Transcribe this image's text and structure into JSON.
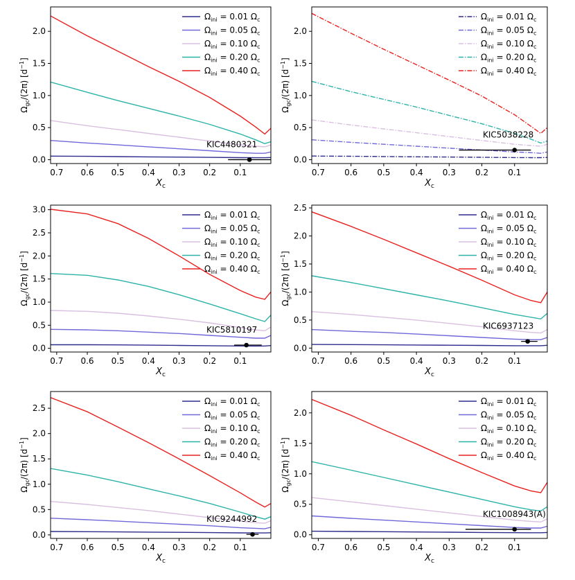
{
  "figure": {
    "xlabel": "X",
    "xlabel_sub": "c",
    "ylabel_main": "Ω",
    "ylabel_sub": "gc",
    "ylabel_rest": "/(2π) [d",
    "ylabel_exp": "−1",
    "ylabel_end": "]"
  },
  "legend_series": [
    {
      "prefix": "Ω",
      "sub": "ini",
      "value": " = 0.01 Ω",
      "csub": "c",
      "color": "#2d2b8c"
    },
    {
      "prefix": "Ω",
      "sub": "ini",
      "value": " = 0.05 Ω",
      "csub": "c",
      "color": "#7067d8"
    },
    {
      "prefix": "Ω",
      "sub": "ini",
      "value": " = 0.10 Ω",
      "csub": "c",
      "color": "#d9bfe0"
    },
    {
      "prefix": "Ω",
      "sub": "ini",
      "value": " = 0.20 Ω",
      "csub": "c",
      "color": "#2bb3a8"
    },
    {
      "prefix": "Ω",
      "sub": "ini",
      "value": " = 0.40 Ω",
      "csub": "c",
      "color": "#e8211e"
    }
  ],
  "chart_data": [
    {
      "type": "line",
      "star": "KIC4480321",
      "legend_style": "solid",
      "xlim": [
        0.72,
        0.0
      ],
      "ylim": [
        -0.06,
        2.38
      ],
      "xticks": [
        "0.7",
        "0.6",
        "0.5",
        "0.4",
        "0.3",
        "0.2",
        "0.1"
      ],
      "xtick_values": [
        0.7,
        0.6,
        0.5,
        0.4,
        0.3,
        0.2,
        0.1
      ],
      "yticks": [
        "0.0",
        "0.5",
        "1.0",
        "1.5",
        "2.0"
      ],
      "ytick_values": [
        0.0,
        0.5,
        1.0,
        1.5,
        2.0
      ],
      "observation": {
        "x": 0.07,
        "y": 0.0,
        "xerr": [
          0.07,
          0.07
        ]
      },
      "series": [
        {
          "color": "#2d2b8c",
          "x": [
            0.72,
            0.6,
            0.5,
            0.4,
            0.3,
            0.2,
            0.1,
            0.05,
            0.02,
            0.0
          ],
          "y": [
            0.056,
            0.052,
            0.048,
            0.044,
            0.04,
            0.036,
            0.032,
            0.031,
            0.031,
            0.034
          ]
        },
        {
          "color": "#7067d8",
          "x": [
            0.72,
            0.6,
            0.5,
            0.4,
            0.3,
            0.2,
            0.1,
            0.05,
            0.02,
            0.0
          ],
          "y": [
            0.3,
            0.26,
            0.23,
            0.2,
            0.17,
            0.14,
            0.11,
            0.1,
            0.1,
            0.12
          ]
        },
        {
          "color": "#d9bfe0",
          "x": [
            0.72,
            0.6,
            0.5,
            0.4,
            0.3,
            0.2,
            0.1,
            0.05,
            0.02,
            0.0
          ],
          "y": [
            0.61,
            0.53,
            0.47,
            0.41,
            0.35,
            0.29,
            0.23,
            0.21,
            0.2,
            0.23
          ]
        },
        {
          "color": "#2bb3a8",
          "x": [
            0.72,
            0.6,
            0.5,
            0.4,
            0.3,
            0.2,
            0.1,
            0.05,
            0.02,
            0.0
          ],
          "y": [
            1.21,
            1.05,
            0.92,
            0.8,
            0.68,
            0.55,
            0.4,
            0.31,
            0.25,
            0.28
          ]
        },
        {
          "color": "#e8211e",
          "x": [
            0.72,
            0.6,
            0.5,
            0.4,
            0.3,
            0.2,
            0.1,
            0.05,
            0.02,
            0.0
          ],
          "y": [
            2.24,
            1.93,
            1.69,
            1.45,
            1.22,
            0.97,
            0.68,
            0.51,
            0.4,
            0.49
          ]
        }
      ]
    },
    {
      "type": "line",
      "star": "KIC5038228",
      "legend_style": "dashdot",
      "xlim": [
        0.72,
        0.0
      ],
      "ylim": [
        -0.06,
        2.38
      ],
      "xticks": [
        "0.7",
        "0.6",
        "0.5",
        "0.4",
        "0.3",
        "0.2",
        "0.1"
      ],
      "xtick_values": [
        0.7,
        0.6,
        0.5,
        0.4,
        0.3,
        0.2,
        0.1
      ],
      "yticks": [
        "0.0",
        "0.5",
        "1.0",
        "1.5",
        "2.0"
      ],
      "ytick_values": [
        0.0,
        0.5,
        1.0,
        1.5,
        2.0
      ],
      "observation": {
        "x": 0.1,
        "y": 0.15,
        "xerr": [
          0.17,
          0.05
        ]
      },
      "series": [
        {
          "color": "#2d2b8c",
          "x": [
            0.72,
            0.6,
            0.5,
            0.4,
            0.3,
            0.2,
            0.1,
            0.05,
            0.02,
            0.0
          ],
          "y": [
            0.057,
            0.053,
            0.049,
            0.045,
            0.041,
            0.037,
            0.033,
            0.032,
            0.032,
            0.035
          ]
        },
        {
          "color": "#7067d8",
          "x": [
            0.72,
            0.6,
            0.5,
            0.4,
            0.3,
            0.2,
            0.1,
            0.05,
            0.02,
            0.0
          ],
          "y": [
            0.31,
            0.27,
            0.24,
            0.21,
            0.18,
            0.15,
            0.12,
            0.11,
            0.1,
            0.12
          ]
        },
        {
          "color": "#d9bfe0",
          "x": [
            0.72,
            0.6,
            0.5,
            0.4,
            0.3,
            0.2,
            0.1,
            0.05,
            0.02,
            0.0
          ],
          "y": [
            0.62,
            0.54,
            0.48,
            0.42,
            0.36,
            0.3,
            0.24,
            0.22,
            0.21,
            0.24
          ]
        },
        {
          "color": "#2bb3a8",
          "x": [
            0.72,
            0.6,
            0.5,
            0.4,
            0.3,
            0.2,
            0.1,
            0.05,
            0.02,
            0.0
          ],
          "y": [
            1.22,
            1.06,
            0.94,
            0.82,
            0.69,
            0.56,
            0.41,
            0.32,
            0.26,
            0.29
          ]
        },
        {
          "color": "#e8211e",
          "x": [
            0.72,
            0.6,
            0.5,
            0.4,
            0.3,
            0.2,
            0.1,
            0.05,
            0.02,
            0.0
          ],
          "y": [
            2.28,
            1.97,
            1.72,
            1.48,
            1.24,
            0.99,
            0.7,
            0.52,
            0.41,
            0.5
          ]
        }
      ]
    },
    {
      "type": "line",
      "star": "KIC5810197",
      "legend_style": "solid",
      "xlim": [
        0.72,
        0.0
      ],
      "ylim": [
        -0.08,
        3.1
      ],
      "xticks": [
        "0.7",
        "0.6",
        "0.5",
        "0.4",
        "0.3",
        "0.2",
        "0.1"
      ],
      "xtick_values": [
        0.7,
        0.6,
        0.5,
        0.4,
        0.3,
        0.2,
        0.1
      ],
      "yticks": [
        "0.0",
        "0.5",
        "1.0",
        "1.5",
        "2.0",
        "2.5",
        "3.0"
      ],
      "ytick_values": [
        0.0,
        0.5,
        1.0,
        1.5,
        2.0,
        2.5,
        3.0
      ],
      "observation": {
        "x": 0.08,
        "y": 0.07,
        "xerr": [
          0.04,
          0.05
        ]
      },
      "series": [
        {
          "color": "#2d2b8c",
          "x": [
            0.72,
            0.6,
            0.5,
            0.4,
            0.3,
            0.2,
            0.1,
            0.05,
            0.02,
            0.0
          ],
          "y": [
            0.078,
            0.077,
            0.074,
            0.069,
            0.063,
            0.057,
            0.051,
            0.049,
            0.05,
            0.06
          ]
        },
        {
          "color": "#7067d8",
          "x": [
            0.72,
            0.6,
            0.5,
            0.4,
            0.3,
            0.2,
            0.1,
            0.05,
            0.02,
            0.0
          ],
          "y": [
            0.41,
            0.4,
            0.38,
            0.35,
            0.32,
            0.28,
            0.24,
            0.22,
            0.22,
            0.28
          ]
        },
        {
          "color": "#d9bfe0",
          "x": [
            0.72,
            0.6,
            0.5,
            0.4,
            0.3,
            0.2,
            0.1,
            0.05,
            0.02,
            0.0
          ],
          "y": [
            0.82,
            0.8,
            0.76,
            0.7,
            0.63,
            0.55,
            0.45,
            0.4,
            0.38,
            0.46
          ]
        },
        {
          "color": "#2bb3a8",
          "x": [
            0.72,
            0.6,
            0.5,
            0.4,
            0.3,
            0.2,
            0.1,
            0.05,
            0.02,
            0.0
          ],
          "y": [
            1.62,
            1.58,
            1.48,
            1.34,
            1.16,
            0.96,
            0.75,
            0.64,
            0.58,
            0.72
          ]
        },
        {
          "color": "#e8211e",
          "x": [
            0.72,
            0.6,
            0.5,
            0.4,
            0.3,
            0.2,
            0.1,
            0.05,
            0.02,
            0.0
          ],
          "y": [
            3.01,
            2.91,
            2.7,
            2.38,
            2.0,
            1.6,
            1.25,
            1.11,
            1.06,
            1.22
          ]
        }
      ]
    },
    {
      "type": "line",
      "star": "KIC6937123",
      "legend_style": "solid",
      "xlim": [
        0.72,
        0.0
      ],
      "ylim": [
        -0.07,
        2.55
      ],
      "xticks": [
        "0.7",
        "0.6",
        "0.5",
        "0.4",
        "0.3",
        "0.2",
        "0.1"
      ],
      "xtick_values": [
        0.7,
        0.6,
        0.5,
        0.4,
        0.3,
        0.2,
        0.1
      ],
      "yticks": [
        "0.0",
        "0.5",
        "1.0",
        "1.5",
        "2.0",
        "2.5"
      ],
      "ytick_values": [
        0.0,
        0.5,
        1.0,
        1.5,
        2.0,
        2.5
      ],
      "observation": {
        "x": 0.06,
        "y": 0.12,
        "xerr": [
          0.02,
          0.03
        ]
      },
      "series": [
        {
          "color": "#2d2b8c",
          "x": [
            0.72,
            0.6,
            0.5,
            0.4,
            0.3,
            0.2,
            0.1,
            0.05,
            0.02,
            0.0
          ],
          "y": [
            0.065,
            0.062,
            0.059,
            0.055,
            0.051,
            0.047,
            0.043,
            0.042,
            0.043,
            0.05
          ]
        },
        {
          "color": "#7067d8",
          "x": [
            0.72,
            0.6,
            0.5,
            0.4,
            0.3,
            0.2,
            0.1,
            0.05,
            0.02,
            0.0
          ],
          "y": [
            0.33,
            0.3,
            0.28,
            0.25,
            0.22,
            0.19,
            0.16,
            0.15,
            0.15,
            0.19
          ]
        },
        {
          "color": "#d9bfe0",
          "x": [
            0.72,
            0.6,
            0.5,
            0.4,
            0.3,
            0.2,
            0.1,
            0.05,
            0.02,
            0.0
          ],
          "y": [
            0.65,
            0.6,
            0.55,
            0.5,
            0.44,
            0.38,
            0.31,
            0.28,
            0.27,
            0.33
          ]
        },
        {
          "color": "#2bb3a8",
          "x": [
            0.72,
            0.6,
            0.5,
            0.4,
            0.3,
            0.2,
            0.1,
            0.05,
            0.02,
            0.0
          ],
          "y": [
            1.29,
            1.17,
            1.06,
            0.95,
            0.84,
            0.72,
            0.6,
            0.55,
            0.52,
            0.62
          ]
        },
        {
          "color": "#e8211e",
          "x": [
            0.72,
            0.6,
            0.5,
            0.4,
            0.3,
            0.2,
            0.1,
            0.05,
            0.02,
            0.0
          ],
          "y": [
            2.43,
            2.17,
            1.94,
            1.7,
            1.46,
            1.21,
            0.95,
            0.85,
            0.81,
            1.0
          ]
        }
      ]
    },
    {
      "type": "line",
      "star": "KIC9244992",
      "legend_style": "solid",
      "xlim": [
        0.72,
        0.0
      ],
      "ylim": [
        -0.07,
        2.83
      ],
      "xticks": [
        "0.7",
        "0.6",
        "0.5",
        "0.4",
        "0.3",
        "0.2",
        "0.1"
      ],
      "xtick_values": [
        0.7,
        0.6,
        0.5,
        0.4,
        0.3,
        0.2,
        0.1
      ],
      "yticks": [
        "0.0",
        "0.5",
        "1.0",
        "1.5",
        "2.0",
        "2.5"
      ],
      "ytick_values": [
        0.0,
        0.5,
        1.0,
        1.5,
        2.0,
        2.5
      ],
      "observation": {
        "x": 0.06,
        "y": 0.01,
        "xerr": [
          0.02,
          0.02
        ]
      },
      "series": [
        {
          "color": "#2d2b8c",
          "x": [
            0.72,
            0.6,
            0.5,
            0.4,
            0.3,
            0.2,
            0.1,
            0.05,
            0.02,
            0.0
          ],
          "y": [
            0.067,
            0.063,
            0.059,
            0.055,
            0.05,
            0.045,
            0.04,
            0.038,
            0.038,
            0.042
          ]
        },
        {
          "color": "#7067d8",
          "x": [
            0.72,
            0.6,
            0.5,
            0.4,
            0.3,
            0.2,
            0.1,
            0.05,
            0.02,
            0.0
          ],
          "y": [
            0.33,
            0.3,
            0.27,
            0.24,
            0.21,
            0.18,
            0.14,
            0.13,
            0.12,
            0.15
          ]
        },
        {
          "color": "#d9bfe0",
          "x": [
            0.72,
            0.6,
            0.5,
            0.4,
            0.3,
            0.2,
            0.1,
            0.05,
            0.02,
            0.0
          ],
          "y": [
            0.66,
            0.6,
            0.54,
            0.48,
            0.41,
            0.34,
            0.27,
            0.24,
            0.23,
            0.28
          ]
        },
        {
          "color": "#2bb3a8",
          "x": [
            0.72,
            0.6,
            0.5,
            0.4,
            0.3,
            0.2,
            0.1,
            0.05,
            0.02,
            0.0
          ],
          "y": [
            1.31,
            1.18,
            1.05,
            0.91,
            0.77,
            0.62,
            0.45,
            0.36,
            0.31,
            0.36
          ]
        },
        {
          "color": "#e8211e",
          "x": [
            0.72,
            0.6,
            0.5,
            0.4,
            0.3,
            0.2,
            0.1,
            0.05,
            0.02,
            0.0
          ],
          "y": [
            2.71,
            2.43,
            2.13,
            1.82,
            1.5,
            1.17,
            0.83,
            0.65,
            0.55,
            0.62
          ]
        }
      ]
    },
    {
      "type": "line",
      "star": "KIC1008943(A)",
      "legend_style": "solid",
      "xlim": [
        0.72,
        0.0
      ],
      "ylim": [
        -0.06,
        2.35
      ],
      "xticks": [
        "0.7",
        "0.6",
        "0.5",
        "0.4",
        "0.3",
        "0.2",
        "0.1"
      ],
      "xtick_values": [
        0.7,
        0.6,
        0.5,
        0.4,
        0.3,
        0.2,
        0.1
      ],
      "yticks": [
        "0.0",
        "0.5",
        "1.0",
        "1.5",
        "2.0"
      ],
      "ytick_values": [
        0.0,
        0.5,
        1.0,
        1.5,
        2.0
      ],
      "observation": {
        "x": 0.1,
        "y": 0.09,
        "xerr": [
          0.15,
          0.05
        ]
      },
      "series": [
        {
          "color": "#2d2b8c",
          "x": [
            0.72,
            0.6,
            0.5,
            0.4,
            0.3,
            0.2,
            0.1,
            0.05,
            0.02,
            0.0
          ],
          "y": [
            0.058,
            0.054,
            0.05,
            0.046,
            0.042,
            0.038,
            0.034,
            0.033,
            0.033,
            0.038
          ]
        },
        {
          "color": "#7067d8",
          "x": [
            0.72,
            0.6,
            0.5,
            0.4,
            0.3,
            0.2,
            0.1,
            0.05,
            0.02,
            0.0
          ],
          "y": [
            0.31,
            0.27,
            0.24,
            0.21,
            0.18,
            0.15,
            0.12,
            0.11,
            0.11,
            0.14
          ]
        },
        {
          "color": "#d9bfe0",
          "x": [
            0.72,
            0.6,
            0.5,
            0.4,
            0.3,
            0.2,
            0.1,
            0.05,
            0.02,
            0.0
          ],
          "y": [
            0.61,
            0.54,
            0.48,
            0.42,
            0.36,
            0.3,
            0.24,
            0.22,
            0.21,
            0.26
          ]
        },
        {
          "color": "#2bb3a8",
          "x": [
            0.72,
            0.6,
            0.5,
            0.4,
            0.3,
            0.2,
            0.1,
            0.05,
            0.02,
            0.0
          ],
          "y": [
            1.2,
            1.06,
            0.94,
            0.82,
            0.7,
            0.58,
            0.46,
            0.41,
            0.39,
            0.46
          ]
        },
        {
          "color": "#e8211e",
          "x": [
            0.72,
            0.6,
            0.5,
            0.4,
            0.3,
            0.2,
            0.1,
            0.05,
            0.02,
            0.0
          ],
          "y": [
            2.22,
            1.96,
            1.72,
            1.49,
            1.25,
            1.02,
            0.8,
            0.72,
            0.69,
            0.86
          ]
        }
      ]
    }
  ]
}
